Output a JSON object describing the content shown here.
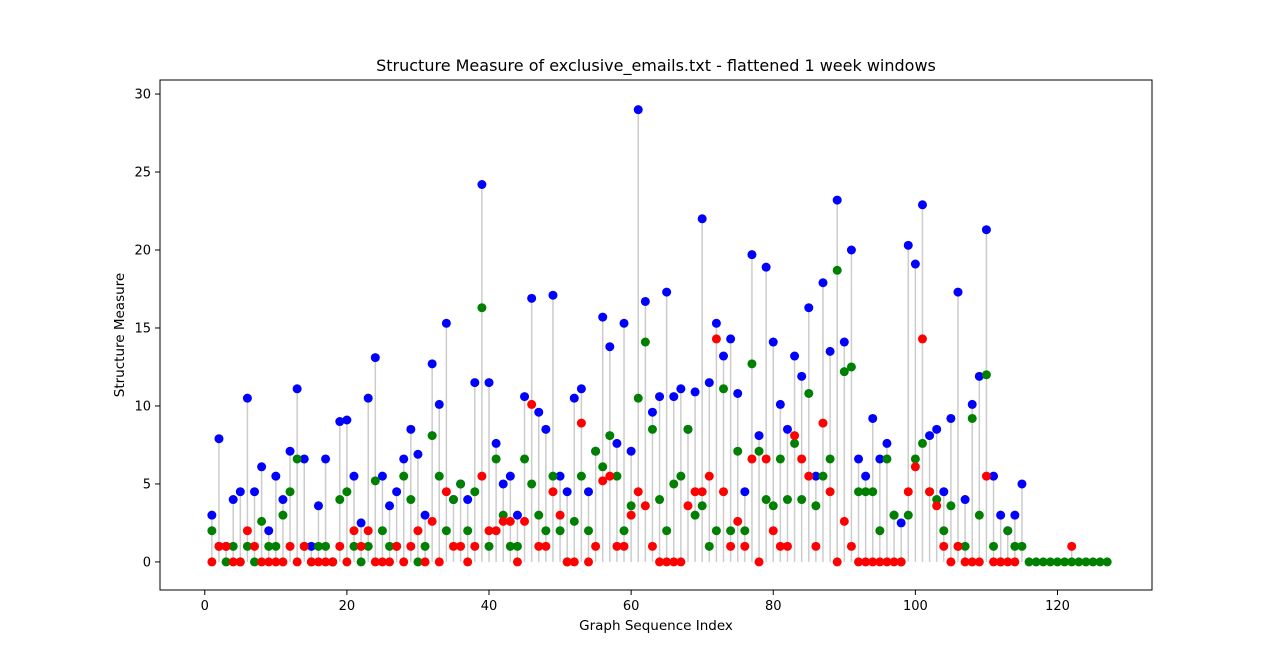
{
  "chart_data": {
    "type": "scatter",
    "title": "Structure Measure of exclusive_emails.txt - flattened 1 week windows",
    "xlabel": "Graph Sequence Index",
    "ylabel": "Structure Measure",
    "xlim": [
      -6.3,
      133.3
    ],
    "ylim": [
      -1.8,
      30.9
    ],
    "xticks": [
      0,
      20,
      40,
      60,
      80,
      100,
      120
    ],
    "yticks": [
      0,
      5,
      10,
      15,
      20,
      25,
      30
    ],
    "grid": false,
    "stem_color": "#cccccc",
    "series": [
      {
        "color": "#0000ff",
        "x": [
          1,
          2,
          3,
          4,
          5,
          6,
          7,
          8,
          9,
          10,
          11,
          12,
          13,
          14,
          15,
          16,
          17,
          18,
          19,
          20,
          21,
          22,
          23,
          24,
          25,
          26,
          27,
          28,
          29,
          30,
          31,
          32,
          33,
          34,
          35,
          36,
          37,
          38,
          39,
          40,
          41,
          42,
          43,
          44,
          45,
          46,
          47,
          48,
          49,
          50,
          51,
          52,
          53,
          54,
          55,
          56,
          57,
          58,
          59,
          60,
          61,
          62,
          63,
          64,
          65,
          66,
          67,
          68,
          69,
          70,
          71,
          72,
          73,
          74,
          75,
          76,
          77,
          78,
          79,
          80,
          81,
          82,
          83,
          84,
          85,
          86,
          87,
          88,
          89,
          90,
          91,
          92,
          93,
          94,
          95,
          96,
          97,
          98,
          99,
          100,
          101,
          102,
          103,
          104,
          105,
          106,
          107,
          108,
          109,
          110,
          111,
          112,
          113,
          114,
          115
        ],
        "values": [
          3,
          7.9,
          1,
          4,
          4.5,
          10.5,
          4.5,
          6.1,
          2,
          5.5,
          4,
          7.1,
          11.1,
          6.6,
          1,
          3.6,
          6.6,
          0,
          9,
          9.1,
          5.5,
          2.5,
          10.5,
          13.1,
          5.5,
          3.6,
          4.5,
          6.6,
          8.5,
          6.9,
          3,
          12.7,
          10.1,
          15.3,
          4,
          5,
          4,
          11.5,
          24.2,
          11.5,
          7.6,
          5,
          5.5,
          3,
          10.6,
          16.9,
          9.6,
          8.5,
          17.1,
          5.5,
          4.5,
          10.5,
          11.1,
          4.5,
          7.1,
          15.7,
          13.8,
          7.6,
          15.3,
          7.1,
          29,
          16.7,
          9.6,
          10.6,
          17.3,
          10.6,
          11.1,
          8.5,
          10.9,
          22,
          11.5,
          15.3,
          13.2,
          14.3,
          10.8,
          4.5,
          19.7,
          8.1,
          18.9,
          14.1,
          10.1,
          8.5,
          13.2,
          11.9,
          16.3,
          5.5,
          17.9,
          13.5,
          23.2,
          14.1,
          20,
          6.6,
          5.5,
          9.2,
          6.6,
          7.6,
          3,
          2.5,
          20.3,
          19.1,
          22.9,
          8.1,
          8.5,
          4.5,
          9.2,
          17.3,
          4,
          10.1,
          11.9,
          21.3,
          5.5,
          3,
          2,
          3,
          5
        ]
      },
      {
        "color": "#008000",
        "x": [
          1,
          2,
          3,
          4,
          5,
          6,
          7,
          8,
          9,
          10,
          11,
          12,
          13,
          14,
          15,
          16,
          17,
          18,
          19,
          20,
          21,
          22,
          23,
          24,
          25,
          26,
          27,
          28,
          29,
          30,
          31,
          32,
          33,
          34,
          35,
          36,
          37,
          38,
          39,
          40,
          41,
          42,
          43,
          44,
          45,
          46,
          47,
          48,
          49,
          50,
          51,
          52,
          53,
          54,
          55,
          56,
          57,
          58,
          59,
          60,
          61,
          62,
          63,
          64,
          65,
          66,
          67,
          68,
          69,
          70,
          71,
          72,
          73,
          74,
          75,
          76,
          77,
          78,
          79,
          80,
          81,
          82,
          83,
          84,
          85,
          86,
          87,
          88,
          89,
          90,
          91,
          92,
          93,
          94,
          95,
          96,
          97,
          98,
          99,
          100,
          101,
          102,
          103,
          104,
          105,
          106,
          107,
          108,
          109,
          110,
          111,
          112,
          113,
          114,
          115,
          116,
          117,
          118,
          119,
          120,
          121,
          122,
          123,
          124,
          125,
          126,
          127
        ],
        "values": [
          2,
          1,
          0,
          1,
          0,
          1,
          0,
          2.6,
          1,
          1,
          3,
          4.5,
          6.6,
          1,
          0,
          1,
          1,
          0,
          4,
          4.5,
          1,
          0,
          1,
          5.2,
          2,
          1,
          1,
          5.5,
          4,
          0,
          1,
          8.1,
          5.5,
          2,
          4,
          5,
          2,
          4.5,
          16.3,
          1,
          6.6,
          3,
          1,
          1,
          6.6,
          5,
          3,
          2,
          5.5,
          2,
          0,
          2.6,
          5.5,
          2,
          7.1,
          6.1,
          8.1,
          5.5,
          2,
          3.6,
          10.5,
          14.1,
          8.5,
          4,
          2,
          5,
          5.5,
          8.5,
          3,
          3.6,
          1,
          2,
          11.1,
          2,
          7.1,
          2,
          12.7,
          7.1,
          4,
          3.6,
          6.6,
          4,
          7.6,
          4,
          10.8,
          3.6,
          5.5,
          6.6,
          18.7,
          12.2,
          12.5,
          4.5,
          4.5,
          4.5,
          2,
          6.6,
          3,
          0,
          3,
          6.6,
          7.6,
          4.5,
          4,
          2,
          3.6,
          1,
          1,
          9.2,
          3,
          12,
          1,
          0,
          2,
          1,
          1,
          0,
          0,
          0,
          0,
          0,
          0,
          0,
          0,
          0,
          0,
          0,
          0
        ]
      },
      {
        "color": "#ff0000",
        "x": [
          1,
          2,
          3,
          4,
          5,
          6,
          7,
          8,
          9,
          10,
          11,
          12,
          13,
          14,
          15,
          16,
          17,
          18,
          19,
          20,
          21,
          22,
          23,
          24,
          25,
          26,
          27,
          28,
          29,
          30,
          31,
          32,
          33,
          34,
          35,
          36,
          37,
          38,
          39,
          40,
          41,
          42,
          43,
          44,
          45,
          46,
          47,
          48,
          49,
          50,
          51,
          52,
          53,
          54,
          55,
          56,
          57,
          58,
          59,
          60,
          61,
          62,
          63,
          64,
          65,
          66,
          67,
          68,
          69,
          70,
          71,
          72,
          73,
          74,
          75,
          76,
          77,
          78,
          79,
          80,
          81,
          82,
          83,
          84,
          85,
          86,
          87,
          88,
          89,
          90,
          91,
          92,
          93,
          94,
          95,
          96,
          97,
          98,
          99,
          100,
          101,
          102,
          103,
          104,
          105,
          106,
          107,
          108,
          109,
          110,
          111,
          112,
          113,
          114,
          122
        ],
        "values": [
          0,
          1,
          1,
          0,
          0,
          2,
          1,
          0,
          0,
          0,
          0,
          1,
          0,
          1,
          0,
          0,
          0,
          0,
          1,
          0,
          2,
          1,
          2,
          0,
          0,
          0,
          1,
          0,
          1,
          2,
          0,
          2.6,
          0,
          4.5,
          1,
          1,
          0,
          1,
          5.5,
          2,
          2,
          2.6,
          2.6,
          0,
          2.6,
          10.1,
          1,
          1,
          4.5,
          3,
          0,
          0,
          8.9,
          0,
          1,
          5.2,
          5.5,
          1,
          1,
          3,
          4.5,
          3.6,
          1,
          0,
          0,
          0,
          0,
          3.6,
          4.5,
          4.5,
          5.5,
          14.3,
          4.5,
          1,
          2.6,
          1,
          6.6,
          0,
          6.6,
          2,
          1,
          1,
          8.1,
          6.6,
          5.5,
          1,
          8.9,
          4.5,
          0,
          2.6,
          1,
          0,
          0,
          0,
          0,
          0,
          0,
          0,
          4.5,
          6.1,
          14.3,
          4.5,
          3.6,
          1,
          0,
          1,
          0,
          0,
          0,
          5.5,
          0,
          0,
          0,
          0,
          1
        ]
      }
    ]
  }
}
